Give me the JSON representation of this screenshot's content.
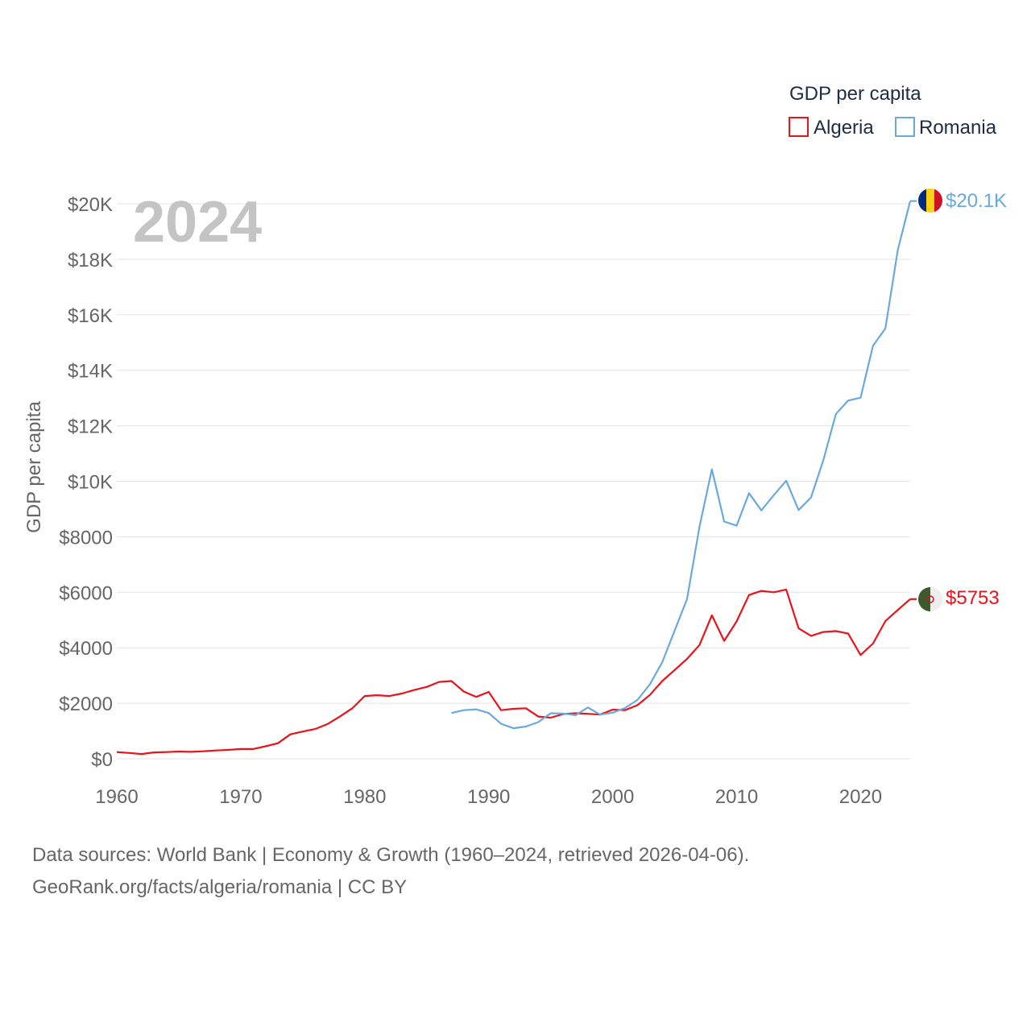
{
  "chart_data": {
    "type": "line",
    "title": "GDP per capita",
    "current_year": "2024",
    "ylabel": "GDP per capita",
    "xlabel": "",
    "xlim": [
      1960,
      2024
    ],
    "ylim": [
      0,
      20000
    ],
    "x_ticks": [
      1960,
      1970,
      1980,
      1990,
      2000,
      2010,
      2020
    ],
    "x_tick_labels": [
      "1960",
      "1970",
      "1980",
      "1990",
      "2000",
      "2010",
      "2020"
    ],
    "y_ticks": [
      0,
      2000,
      4000,
      6000,
      8000,
      10000,
      12000,
      14000,
      16000,
      18000,
      20000
    ],
    "y_tick_labels": [
      "$0",
      "$2000",
      "$4000",
      "$6000",
      "$8000",
      "$10K",
      "$12K",
      "$14K",
      "$16K",
      "$18K",
      "$20K"
    ],
    "grid": true,
    "legend_title": "GDP per capita",
    "legend_position": "top-right",
    "series": [
      {
        "name": "Algeria",
        "color": "#e8141c",
        "end_label": "$5753",
        "flag_icon": "algeria-flag-icon",
        "x": [
          1960,
          1961,
          1962,
          1963,
          1964,
          1965,
          1966,
          1967,
          1968,
          1969,
          1970,
          1971,
          1972,
          1973,
          1974,
          1975,
          1976,
          1977,
          1978,
          1979,
          1980,
          1981,
          1982,
          1983,
          1984,
          1985,
          1986,
          1987,
          1988,
          1989,
          1990,
          1991,
          1992,
          1993,
          1994,
          1995,
          1996,
          1997,
          1998,
          1999,
          2000,
          2001,
          2002,
          2003,
          2004,
          2005,
          2006,
          2007,
          2008,
          2009,
          2010,
          2011,
          2012,
          2013,
          2014,
          2015,
          2016,
          2017,
          2018,
          2019,
          2020,
          2021,
          2022,
          2023,
          2024
        ],
        "values": [
          240,
          210,
          170,
          230,
          240,
          260,
          250,
          270,
          300,
          320,
          350,
          350,
          450,
          560,
          880,
          980,
          1070,
          1250,
          1520,
          1820,
          2260,
          2290,
          2260,
          2350,
          2480,
          2590,
          2770,
          2800,
          2420,
          2230,
          2410,
          1750,
          1800,
          1820,
          1520,
          1480,
          1610,
          1640,
          1620,
          1590,
          1770,
          1750,
          1930,
          2300,
          2800,
          3200,
          3600,
          4100,
          5170,
          4250,
          4950,
          5900,
          6050,
          6000,
          6100,
          4700,
          4430,
          4570,
          4600,
          4510,
          3740,
          4150,
          4960,
          5360,
          5753
        ]
      },
      {
        "name": "Romania",
        "color": "#6aa9e0",
        "end_label": "$20.1K",
        "flag_icon": "romania-flag-icon",
        "x": [
          1987,
          1988,
          1989,
          1990,
          1991,
          1992,
          1993,
          1994,
          1995,
          1996,
          1997,
          1998,
          1999,
          2000,
          2001,
          2002,
          2003,
          2004,
          2005,
          2006,
          2007,
          2008,
          2009,
          2010,
          2011,
          2012,
          2013,
          2014,
          2015,
          2016,
          2017,
          2018,
          2019,
          2020,
          2021,
          2022,
          2023,
          2024
        ],
        "values": [
          1650,
          1750,
          1780,
          1650,
          1260,
          1100,
          1160,
          1320,
          1640,
          1630,
          1570,
          1850,
          1590,
          1660,
          1830,
          2120,
          2680,
          3480,
          4620,
          5760,
          8360,
          10430,
          8550,
          8400,
          9570,
          8950,
          9500,
          10020,
          8960,
          9420,
          10770,
          12420,
          12910,
          13010,
          14880,
          15510,
          18330,
          20100
        ]
      }
    ]
  },
  "source": {
    "line1": "Data sources: World Bank | Economy & Growth (1960–2024, retrieved 2026-04-06).",
    "line2": "GeoRank.org/facts/algeria/romania | CC BY"
  }
}
